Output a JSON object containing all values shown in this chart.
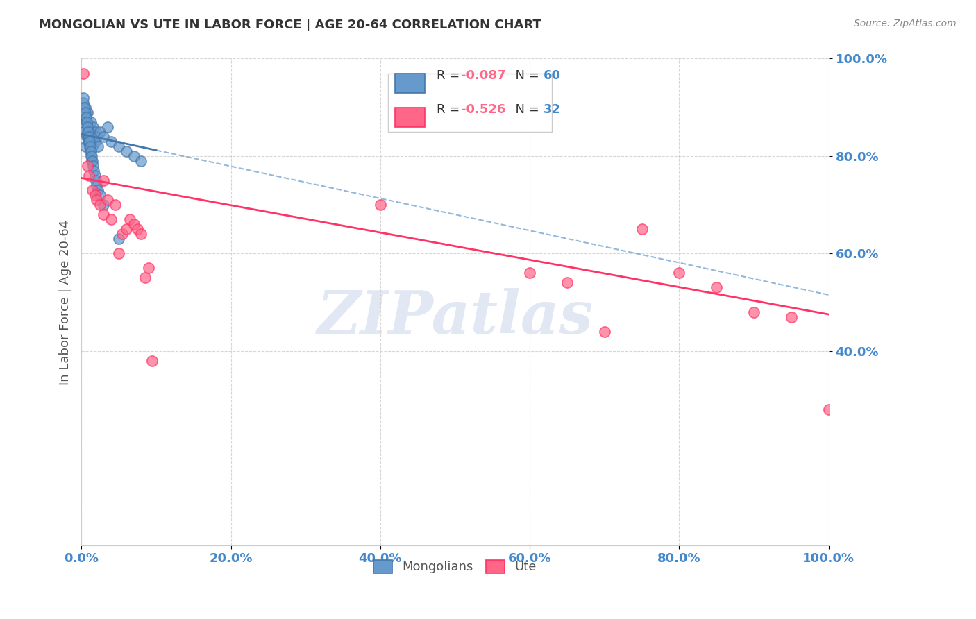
{
  "title": "MONGOLIAN VS UTE IN LABOR FORCE | AGE 20-64 CORRELATION CHART",
  "source": "Source: ZipAtlas.com",
  "ylabel": "In Labor Force | Age 20-64",
  "xlabel": "",
  "xlim": [
    0.0,
    1.0
  ],
  "ylim": [
    0.0,
    1.0
  ],
  "xticks": [
    0.0,
    0.2,
    0.4,
    0.6,
    0.8,
    1.0
  ],
  "yticks": [
    0.4,
    0.6,
    0.8,
    1.0
  ],
  "xtick_labels": [
    "0.0%",
    "20.0%",
    "40.0%",
    "60.0%",
    "80.0%",
    "100.0%"
  ],
  "ytick_labels": [
    "40.0%",
    "60.0%",
    "80.0%",
    "100.0%"
  ],
  "watermark": "ZIPatlas",
  "mongolian_color": "#6699CC",
  "ute_color": "#FF6688",
  "mongolian_edge": "#4477AA",
  "ute_edge": "#FF3366",
  "legend_R_mongolian": "R = -0.087",
  "legend_N_mongolian": "N = 60",
  "legend_R_ute": "R = -0.526",
  "legend_N_ute": "N = 32",
  "mongolian_x": [
    0.002,
    0.003,
    0.004,
    0.005,
    0.006,
    0.007,
    0.008,
    0.009,
    0.01,
    0.011,
    0.012,
    0.013,
    0.014,
    0.015,
    0.016,
    0.017,
    0.018,
    0.019,
    0.02,
    0.022,
    0.025,
    0.03,
    0.035,
    0.04,
    0.05,
    0.06,
    0.07,
    0.08,
    0.005,
    0.006,
    0.007,
    0.008,
    0.009,
    0.01,
    0.011,
    0.012,
    0.013,
    0.014,
    0.003,
    0.004,
    0.005,
    0.006,
    0.007,
    0.008,
    0.009,
    0.01,
    0.011,
    0.012,
    0.013,
    0.014,
    0.015,
    0.016,
    0.017,
    0.018,
    0.019,
    0.02,
    0.022,
    0.025,
    0.03,
    0.05
  ],
  "mongolian_y": [
    0.87,
    0.91,
    0.85,
    0.82,
    0.88,
    0.84,
    0.89,
    0.83,
    0.86,
    0.85,
    0.84,
    0.87,
    0.83,
    0.82,
    0.86,
    0.84,
    0.83,
    0.85,
    0.84,
    0.82,
    0.85,
    0.84,
    0.86,
    0.83,
    0.82,
    0.81,
    0.8,
    0.79,
    0.9,
    0.88,
    0.87,
    0.85,
    0.84,
    0.83,
    0.82,
    0.81,
    0.8,
    0.79,
    0.92,
    0.9,
    0.89,
    0.88,
    0.87,
    0.86,
    0.85,
    0.84,
    0.83,
    0.82,
    0.81,
    0.8,
    0.79,
    0.78,
    0.77,
    0.76,
    0.75,
    0.74,
    0.73,
    0.72,
    0.7,
    0.63
  ],
  "ute_x": [
    0.003,
    0.008,
    0.01,
    0.015,
    0.018,
    0.02,
    0.025,
    0.03,
    0.03,
    0.035,
    0.04,
    0.045,
    0.05,
    0.055,
    0.06,
    0.065,
    0.07,
    0.075,
    0.08,
    0.085,
    0.09,
    0.095,
    0.4,
    0.6,
    0.65,
    0.7,
    0.75,
    0.8,
    0.85,
    0.9,
    0.95,
    1.0
  ],
  "ute_y": [
    0.97,
    0.78,
    0.76,
    0.73,
    0.72,
    0.71,
    0.7,
    0.68,
    0.75,
    0.71,
    0.67,
    0.7,
    0.6,
    0.64,
    0.65,
    0.67,
    0.66,
    0.65,
    0.64,
    0.55,
    0.57,
    0.38,
    0.7,
    0.56,
    0.54,
    0.44,
    0.65,
    0.56,
    0.53,
    0.48,
    0.47,
    0.28
  ],
  "mongolian_trend_x": [
    0.0,
    0.1
  ],
  "mongolian_trend_y": [
    0.845,
    0.812
  ],
  "ute_trend_x": [
    0.0,
    1.0
  ],
  "ute_trend_y": [
    0.755,
    0.475
  ],
  "background_color": "#ffffff",
  "grid_color": "#cccccc",
  "title_color": "#333333",
  "axis_color": "#4488cc",
  "watermark_color": "#aabbdd"
}
